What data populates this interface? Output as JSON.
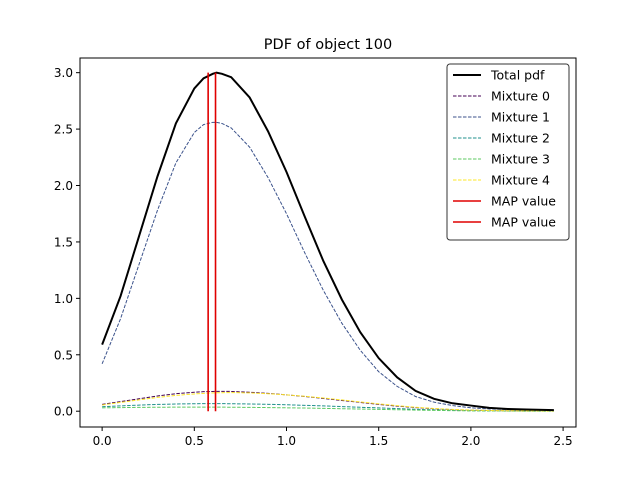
{
  "chart_data": {
    "type": "line",
    "title": "PDF of object 100",
    "xlabel": "",
    "ylabel": "",
    "xlim": [
      -0.12,
      2.57
    ],
    "ylim": [
      -0.14,
      3.13
    ],
    "xticks": [
      0.0,
      0.5,
      1.0,
      1.5,
      2.0,
      2.5
    ],
    "xtick_labels": [
      "0.0",
      "0.5",
      "1.0",
      "1.5",
      "2.0",
      "2.5"
    ],
    "yticks": [
      0.0,
      0.5,
      1.0,
      1.5,
      2.0,
      2.5,
      3.0
    ],
    "ytick_labels": [
      "0.0",
      "0.5",
      "1.0",
      "1.5",
      "2.0",
      "2.5",
      "3.0"
    ],
    "grid": false,
    "legend_position": "top-right",
    "x": [
      0.0,
      0.1,
      0.2,
      0.3,
      0.4,
      0.5,
      0.55,
      0.6,
      0.62,
      0.65,
      0.7,
      0.8,
      0.9,
      1.0,
      1.1,
      1.2,
      1.3,
      1.4,
      1.5,
      1.6,
      1.7,
      1.8,
      1.9,
      2.0,
      2.1,
      2.2,
      2.3,
      2.45
    ],
    "series": [
      {
        "name": "Total pdf",
        "color": "#000000",
        "dash": "solid",
        "values": [
          0.59,
          1.02,
          1.55,
          2.08,
          2.55,
          2.86,
          2.95,
          2.99,
          3.0,
          2.99,
          2.96,
          2.78,
          2.48,
          2.12,
          1.72,
          1.33,
          0.99,
          0.7,
          0.47,
          0.3,
          0.18,
          0.11,
          0.07,
          0.05,
          0.03,
          0.02,
          0.015,
          0.01
        ]
      },
      {
        "name": "Mixture 0",
        "color": "#440154",
        "dash": "dashed",
        "values": [
          0.06,
          0.085,
          0.11,
          0.135,
          0.155,
          0.168,
          0.173,
          0.175,
          0.176,
          0.176,
          0.175,
          0.168,
          0.158,
          0.145,
          0.13,
          0.113,
          0.095,
          0.078,
          0.06,
          0.045,
          0.032,
          0.022,
          0.014,
          0.009,
          0.006,
          0.004,
          0.003,
          0.002
        ]
      },
      {
        "name": "Mixture 1",
        "color": "#3b528b",
        "dash": "dashed",
        "values": [
          0.42,
          0.82,
          1.3,
          1.78,
          2.2,
          2.47,
          2.54,
          2.56,
          2.56,
          2.55,
          2.51,
          2.34,
          2.07,
          1.75,
          1.4,
          1.07,
          0.78,
          0.54,
          0.35,
          0.22,
          0.13,
          0.08,
          0.05,
          0.03,
          0.02,
          0.015,
          0.01,
          0.01
        ]
      },
      {
        "name": "Mixture 2",
        "color": "#21918c",
        "dash": "dashed",
        "values": [
          0.04,
          0.047,
          0.054,
          0.06,
          0.064,
          0.066,
          0.067,
          0.067,
          0.067,
          0.067,
          0.066,
          0.064,
          0.061,
          0.057,
          0.052,
          0.047,
          0.041,
          0.035,
          0.029,
          0.023,
          0.017,
          0.012,
          0.008,
          0.005,
          0.003,
          0.002,
          0.001,
          0.001
        ]
      },
      {
        "name": "Mixture 3",
        "color": "#5ec962",
        "dash": "dashed",
        "values": [
          0.03,
          0.032,
          0.034,
          0.035,
          0.036,
          0.036,
          0.036,
          0.036,
          0.036,
          0.036,
          0.035,
          0.034,
          0.032,
          0.03,
          0.028,
          0.025,
          0.022,
          0.019,
          0.016,
          0.013,
          0.01,
          0.007,
          0.005,
          0.003,
          0.002,
          0.001,
          0.001,
          0.001
        ]
      },
      {
        "name": "Mixture 4",
        "color": "#fde725",
        "dash": "dashed",
        "values": [
          0.055,
          0.078,
          0.1,
          0.122,
          0.14,
          0.153,
          0.158,
          0.162,
          0.163,
          0.164,
          0.165,
          0.162,
          0.155,
          0.145,
          0.132,
          0.117,
          0.1,
          0.082,
          0.065,
          0.049,
          0.035,
          0.024,
          0.016,
          0.01,
          0.006,
          0.004,
          0.003,
          0.002
        ]
      }
    ],
    "vlines": [
      {
        "name": "MAP value",
        "x": 0.575,
        "ymin": 0.0,
        "ymax": 3.0,
        "color": "#e00000"
      },
      {
        "name": "MAP value",
        "x": 0.615,
        "ymin": 0.0,
        "ymax": 3.0,
        "color": "#e00000"
      }
    ]
  }
}
